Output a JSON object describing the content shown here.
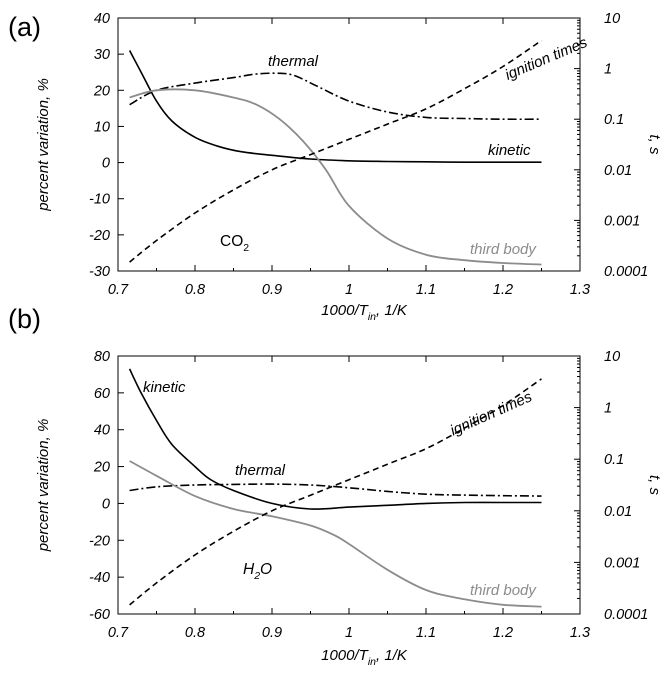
{
  "chart_data": [
    {
      "panel_label": "(a)",
      "type": "line",
      "xlabel": "1000/T",
      "xlabel_sub": "in",
      "xlabel_unit": ", 1/K",
      "ylabel": "percent variation, %",
      "ylabel_right": "t, s",
      "xlim": [
        0.7,
        1.3
      ],
      "ylim": [
        -30,
        40
      ],
      "xticks": [
        0.7,
        0.8,
        0.9,
        1,
        1.1,
        1.2,
        1.3
      ],
      "xtick_labels": [
        "0.7",
        "0.8",
        "0.9",
        "1",
        "1.1",
        "1.2",
        "1.3"
      ],
      "yticks": [
        -30,
        -20,
        -10,
        0,
        10,
        20,
        30,
        40
      ],
      "ytick_labels": [
        "-30",
        "-20",
        "-10",
        "0",
        "10",
        "20",
        "30",
        "40"
      ],
      "ylim_right": [
        0.0001,
        10
      ],
      "yscale_right": "log",
      "yticks_right": [
        0.0001,
        0.001,
        0.01,
        0.1,
        1,
        10
      ],
      "ytick_labels_right": [
        "0.0001",
        "0.001",
        "0.01",
        "0.1",
        "1",
        "10"
      ],
      "species": {
        "main": "CO",
        "sub": "2",
        "italic": false
      },
      "series": [
        {
          "name": "kinetic",
          "style": "solid",
          "color": "#000000",
          "axis": "left",
          "x": [
            0.715,
            0.73,
            0.75,
            0.77,
            0.8,
            0.83,
            0.86,
            0.9,
            0.95,
            1.0,
            1.05,
            1.1,
            1.15,
            1.2,
            1.25
          ],
          "y": [
            31,
            25,
            17,
            11.5,
            7,
            4.5,
            3,
            2,
            1,
            0.5,
            0.3,
            0.2,
            0.1,
            0.1,
            0.1
          ]
        },
        {
          "name": "thermal",
          "style": "dashdot",
          "color": "#000000",
          "axis": "left",
          "x": [
            0.715,
            0.75,
            0.8,
            0.85,
            0.88,
            0.91,
            0.93,
            0.96,
            1.0,
            1.05,
            1.1,
            1.15,
            1.2,
            1.25
          ],
          "y": [
            16,
            20,
            22,
            23.5,
            24.5,
            24.7,
            24,
            21,
            17,
            14,
            12.5,
            12.2,
            12,
            12
          ]
        },
        {
          "name": "third body",
          "style": "solid",
          "color": "#8c8c8c",
          "axis": "left",
          "x": [
            0.715,
            0.75,
            0.8,
            0.85,
            0.88,
            0.91,
            0.94,
            0.97,
            1.0,
            1.05,
            1.1,
            1.15,
            1.2,
            1.25
          ],
          "y": [
            18,
            20,
            20,
            18,
            16,
            12,
            6,
            -2,
            -12,
            -21,
            -25.5,
            -27,
            -27.8,
            -28.2
          ]
        },
        {
          "name": "ignition times",
          "style": "dashed",
          "color": "#000000",
          "axis": "right",
          "x": [
            0.715,
            0.75,
            0.8,
            0.85,
            0.9,
            0.95,
            1.0,
            1.05,
            1.1,
            1.15,
            1.2,
            1.25
          ],
          "y": [
            0.00015,
            0.0004,
            0.0014,
            0.004,
            0.01,
            0.02,
            0.04,
            0.08,
            0.16,
            0.4,
            1.1,
            3.6
          ]
        }
      ],
      "annotations": [
        {
          "text": "thermal",
          "color": "black"
        },
        {
          "text": "ignition times",
          "color": "black"
        },
        {
          "text": "kinetic",
          "color": "black"
        },
        {
          "text": "third body",
          "color": "gray"
        }
      ]
    },
    {
      "panel_label": "(b)",
      "type": "line",
      "xlabel": "1000/T",
      "xlabel_sub": "in",
      "xlabel_unit": ", 1/K",
      "ylabel": "percent variation, %",
      "ylabel_right": "t, s",
      "xlim": [
        0.7,
        1.3
      ],
      "ylim": [
        -60,
        80
      ],
      "xticks": [
        0.7,
        0.8,
        0.9,
        1,
        1.1,
        1.2,
        1.3
      ],
      "xtick_labels": [
        "0.7",
        "0.8",
        "0.9",
        "1",
        "1.1",
        "1.2",
        "1.3"
      ],
      "yticks": [
        -60,
        -40,
        -20,
        0,
        20,
        40,
        60,
        80
      ],
      "ytick_labels": [
        "-60",
        "-40",
        "-20",
        "0",
        "20",
        "40",
        "60",
        "80"
      ],
      "ylim_right": [
        0.0001,
        10
      ],
      "yscale_right": "log",
      "yticks_right": [
        0.0001,
        0.001,
        0.01,
        0.1,
        1,
        10
      ],
      "ytick_labels_right": [
        "0.0001",
        "0.001",
        "0.01",
        "0.1",
        "1",
        "10"
      ],
      "species": {
        "main": "H",
        "sub": "2",
        "tail": "O",
        "italic": true
      },
      "series": [
        {
          "name": "kinetic",
          "style": "solid",
          "color": "#000000",
          "axis": "left",
          "x": [
            0.715,
            0.73,
            0.75,
            0.77,
            0.8,
            0.82,
            0.85,
            0.9,
            0.95,
            1.0,
            1.05,
            1.1,
            1.15,
            1.2,
            1.25
          ],
          "y": [
            73,
            60,
            45,
            32,
            20,
            13,
            7,
            0,
            -3,
            -2,
            -1,
            0,
            0.5,
            0.5,
            0.5
          ]
        },
        {
          "name": "thermal",
          "style": "dashdot",
          "color": "#000000",
          "axis": "left",
          "x": [
            0.715,
            0.75,
            0.8,
            0.85,
            0.9,
            0.95,
            1.0,
            1.05,
            1.1,
            1.15,
            1.2,
            1.25
          ],
          "y": [
            7,
            9,
            10,
            10.3,
            10.5,
            10,
            8.5,
            6.5,
            5,
            4.5,
            4.2,
            4
          ]
        },
        {
          "name": "third body",
          "style": "solid",
          "color": "#8c8c8c",
          "axis": "left",
          "x": [
            0.715,
            0.75,
            0.8,
            0.85,
            0.9,
            0.95,
            0.98,
            1.0,
            1.05,
            1.1,
            1.15,
            1.2,
            1.25
          ],
          "y": [
            23,
            15,
            4,
            -3,
            -7,
            -12,
            -17,
            -22,
            -36,
            -47,
            -52,
            -55,
            -56
          ]
        },
        {
          "name": "ignition times",
          "style": "dashed",
          "color": "#000000",
          "axis": "right",
          "x": [
            0.715,
            0.75,
            0.8,
            0.85,
            0.9,
            0.95,
            1.0,
            1.05,
            1.1,
            1.15,
            1.2,
            1.25
          ],
          "y": [
            0.00015,
            0.0004,
            0.0014,
            0.004,
            0.01,
            0.02,
            0.04,
            0.08,
            0.16,
            0.4,
            1.1,
            3.6
          ]
        }
      ],
      "annotations": [
        {
          "text": "kinetic",
          "color": "black"
        },
        {
          "text": "ignition times",
          "color": "black"
        },
        {
          "text": "thermal",
          "color": "black"
        },
        {
          "text": "third body",
          "color": "gray"
        }
      ]
    }
  ]
}
